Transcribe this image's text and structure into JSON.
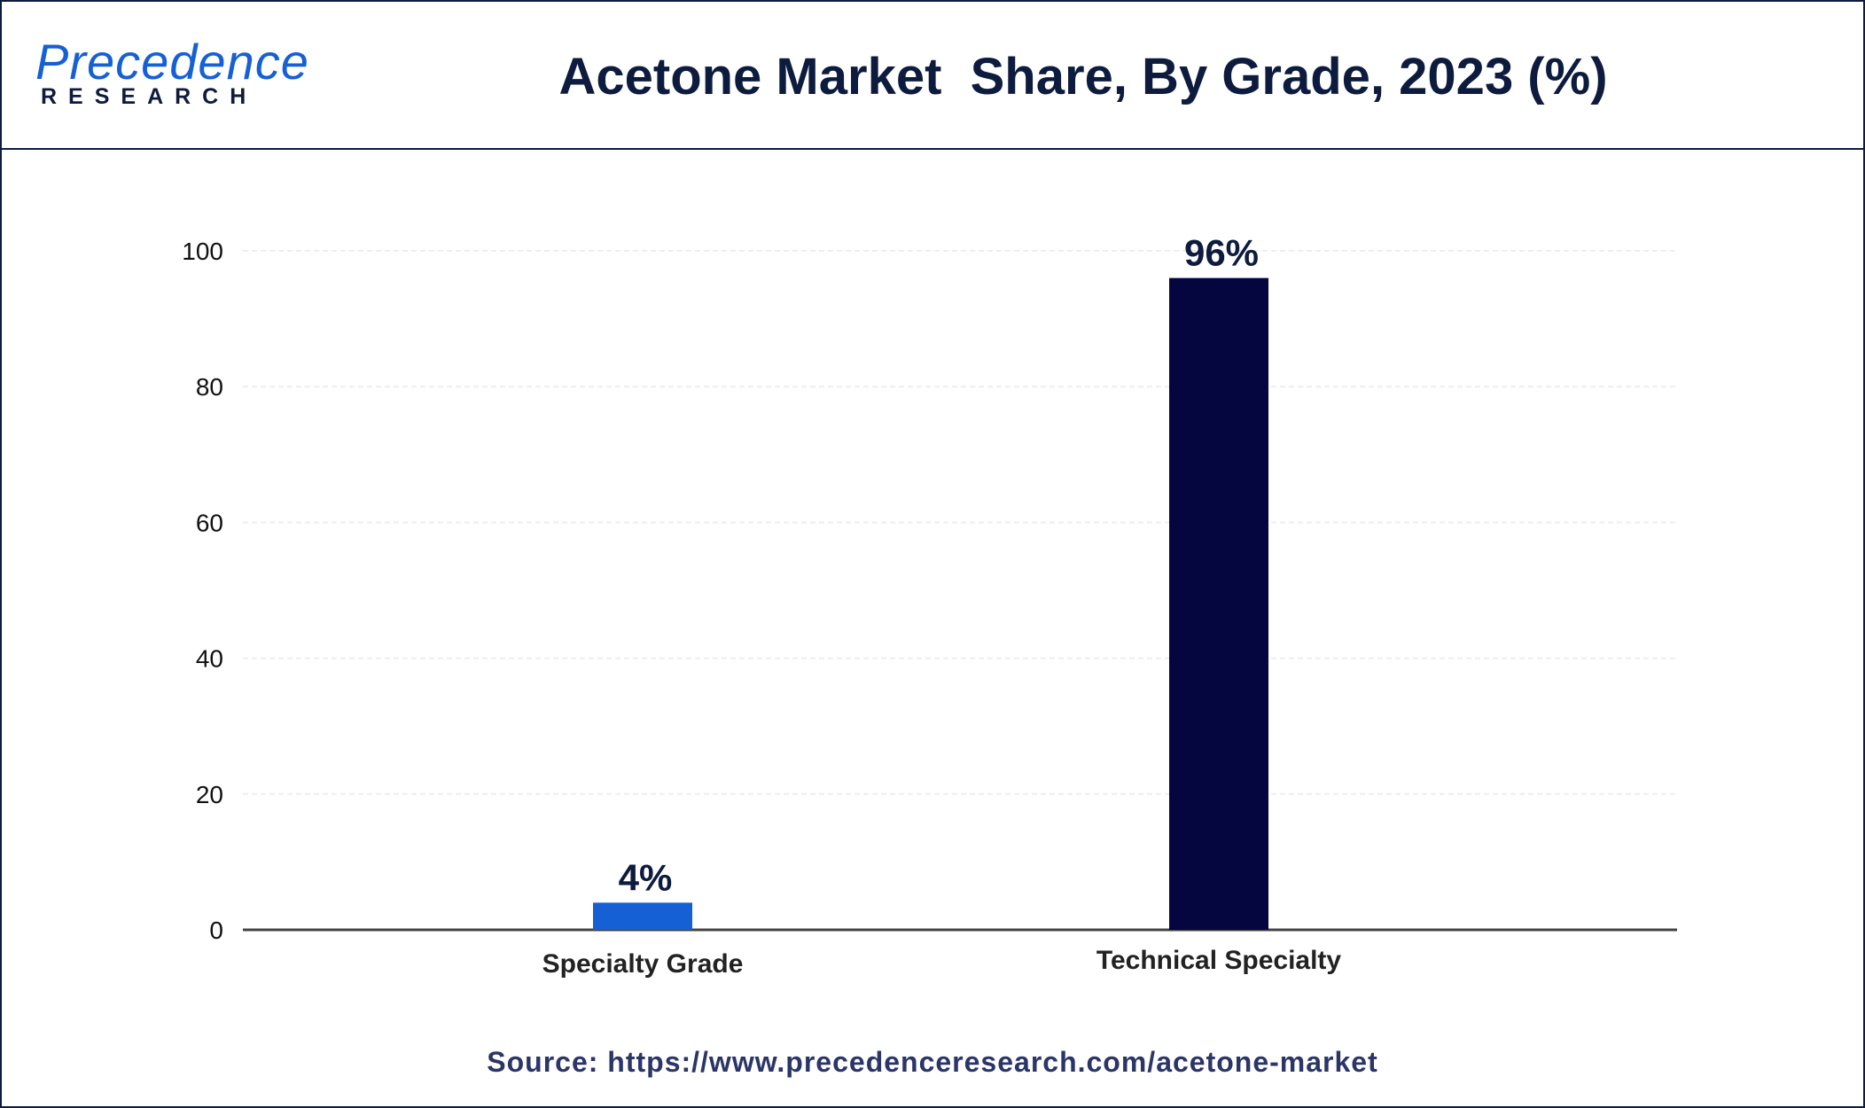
{
  "header": {
    "logo_main": "Precedence",
    "logo_sub": "RESEARCH",
    "title": "Acetone Market  Share, By Grade, 2023 (%)"
  },
  "chart_data": {
    "type": "bar",
    "title": "Acetone Market  Share, By Grade, 2023 (%)",
    "categories": [
      "Specialty Grade",
      "Technical Specialty"
    ],
    "values": [
      4,
      96
    ],
    "data_labels": [
      "4%",
      "96%"
    ],
    "bar_colors": [
      "#1560d4",
      "#05053f"
    ],
    "xlabel": "",
    "ylabel": "",
    "ylim": [
      0,
      100
    ],
    "yticks": [
      0,
      20,
      40,
      60,
      80,
      100
    ],
    "grid": true,
    "legend": "none"
  },
  "footer": {
    "source": "Source: https://www.precedenceresearch.com/acetone-market"
  }
}
